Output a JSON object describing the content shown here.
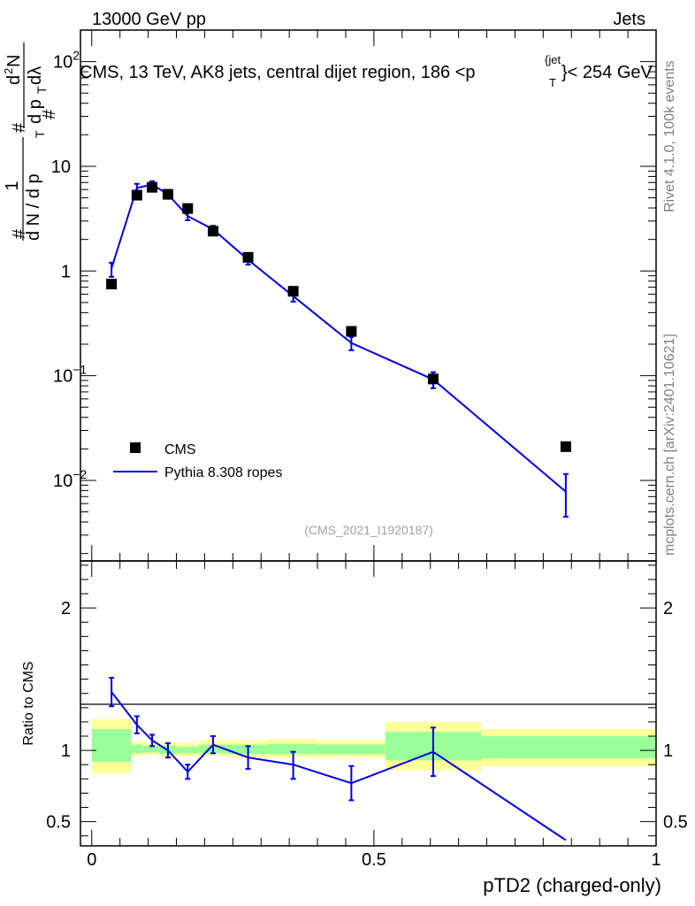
{
  "header": {
    "energy_label": "13000 GeV pp",
    "category_label": "Jets"
  },
  "side_labels": {
    "rivet": "Rivet 4.1.0,  100k events",
    "mcplots": "mcplots.cern.ch [arXiv:2401.10621]"
  },
  "chart_data": [
    {
      "type": "line",
      "panel": "main",
      "title": "CMS, 13 TeV, AK8 jets, central dijet region, 186 <p_T^{jet}< 254 GeV",
      "title_text": {
        "main": "CMS, 13 TeV, AK8 jets, central dijet region, 186 <p",
        "sub": "T",
        "sup": "{jet",
        "tail": "}< 254 GeV"
      },
      "ylabel": "1/(dN/dp_T) · d²N/(dp_T dλ)",
      "ylabel_parts": {
        "outer_num": "1",
        "outer_den": "d N / d p",
        "outer_den_sub": "T",
        "inner_num": "d",
        "inner_num_sup": "2",
        "inner_num_tail": "N",
        "inner_den": "d p",
        "inner_den_sub": "T",
        "inner_den_tail": " dλ",
        "hash": "#"
      },
      "yscale": "log",
      "ylim": [
        0.0017,
        200
      ],
      "xlim": [
        -0.02,
        1.0
      ],
      "yticks": [
        {
          "value": 100,
          "label": "10",
          "sup": "2"
        },
        {
          "value": 10,
          "label": "10",
          "sup": ""
        },
        {
          "value": 1,
          "label": "1",
          "sup": ""
        },
        {
          "value": 0.1,
          "label": "10",
          "sup": "−1"
        },
        {
          "value": 0.01,
          "label": "10",
          "sup": "−2"
        }
      ],
      "watermark": "(CMS_2021_I1920187)",
      "legend": [
        "CMS",
        "Pythia 8.308 ropes"
      ],
      "legend_position": "bottom-left",
      "series": [
        {
          "name": "CMS",
          "style": "markers",
          "x": [
            0.035,
            0.08,
            0.107,
            0.135,
            0.17,
            0.215,
            0.277,
            0.357,
            0.46,
            0.605,
            0.84
          ],
          "y": [
            0.75,
            5.3,
            6.3,
            5.4,
            3.95,
            2.4,
            1.35,
            0.64,
            0.265,
            0.093,
            0.021
          ]
        },
        {
          "name": "Pythia 8.308 ropes",
          "style": "line",
          "color": "#0000e0",
          "x": [
            0.035,
            0.08,
            0.107,
            0.135,
            0.17,
            0.215,
            0.277,
            0.357,
            0.46,
            0.605,
            0.84
          ],
          "y": [
            1.06,
            6.2,
            6.7,
            5.4,
            3.35,
            2.5,
            1.28,
            0.575,
            0.205,
            0.092,
            0.0078
          ],
          "err_lo": [
            0.88,
            5.6,
            6.1,
            5.0,
            3.05,
            2.3,
            1.15,
            0.51,
            0.175,
            0.076,
            0.0045
          ],
          "err_hi": [
            1.2,
            6.8,
            7.2,
            5.8,
            3.65,
            2.7,
            1.4,
            0.64,
            0.235,
            0.108,
            0.0115
          ]
        }
      ]
    },
    {
      "type": "line",
      "panel": "ratio",
      "ylabel": "Ratio to CMS",
      "xlabel": "pTD2 (charged-only)",
      "xlim": [
        -0.02,
        1.0
      ],
      "ylim": [
        0.33,
        2.33
      ],
      "xticks": [
        {
          "value": 0,
          "label": "0"
        },
        {
          "value": 0.5,
          "label": "0.5"
        },
        {
          "value": 1,
          "label": "1"
        }
      ],
      "yticks": [
        {
          "value": 2,
          "label": "2"
        },
        {
          "value": 1,
          "label": "1"
        },
        {
          "value": 0.5,
          "label": "0.5"
        }
      ],
      "bands": {
        "bins": [
          0,
          0.07,
          0.09,
          0.12,
          0.15,
          0.19,
          0.24,
          0.31,
          0.4,
          0.52,
          0.69,
          1.0
        ],
        "outer_lo": [
          0.84,
          0.96,
          0.97,
          0.95,
          0.96,
          0.96,
          0.95,
          0.95,
          0.95,
          0.86,
          0.89
        ],
        "outer_hi": [
          1.22,
          1.06,
          1.05,
          1.06,
          1.05,
          1.07,
          1.07,
          1.08,
          1.07,
          1.2,
          1.15
        ],
        "inner_lo": [
          0.92,
          0.98,
          0.985,
          0.975,
          0.98,
          0.98,
          0.975,
          0.975,
          0.975,
          0.93,
          0.945
        ],
        "inner_hi": [
          1.15,
          1.04,
          1.03,
          1.035,
          1.025,
          1.04,
          1.04,
          1.045,
          1.04,
          1.13,
          1.1
        ],
        "outer_color": "#ffff99",
        "inner_color": "#99ff99"
      },
      "series": [
        {
          "name": "Pythia 8.308 ropes / CMS",
          "color": "#0000e0",
          "x": [
            0.035,
            0.08,
            0.107,
            0.135,
            0.17,
            0.215,
            0.277,
            0.357,
            0.46,
            0.605,
            0.84
          ],
          "y": [
            1.41,
            1.18,
            1.07,
            1.0,
            0.85,
            1.04,
            0.95,
            0.9,
            0.77,
            0.99,
            0.37
          ],
          "err_lo": [
            1.31,
            1.12,
            1.03,
            0.95,
            0.8,
            0.98,
            0.87,
            0.8,
            0.65,
            0.82,
            0.37
          ],
          "err_hi": [
            1.51,
            1.24,
            1.11,
            1.05,
            0.9,
            1.1,
            1.03,
            0.99,
            0.89,
            1.16,
            0.37
          ]
        }
      ]
    }
  ]
}
